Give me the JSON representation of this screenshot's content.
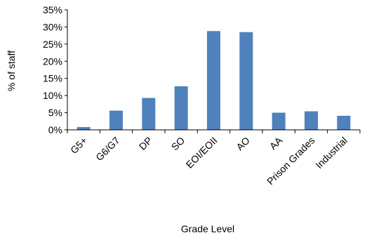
{
  "chart_data": {
    "type": "bar",
    "title": "",
    "xlabel": "Grade Level",
    "ylabel": "% of staff",
    "categories": [
      "G5+",
      "G6/G7",
      "DP",
      "SO",
      "EOI/EOII",
      "AO",
      "AA",
      "Prison Grades",
      "Industrial"
    ],
    "values": [
      0.8,
      5.6,
      9.3,
      12.7,
      28.8,
      28.5,
      5.0,
      5.4,
      4.1
    ],
    "ylim": [
      0,
      35
    ],
    "ytick_step": 5,
    "ytick_format": "percent",
    "grid": false,
    "legend": "none",
    "bar_color": "#4f81bd",
    "axis_color": "#000000"
  }
}
